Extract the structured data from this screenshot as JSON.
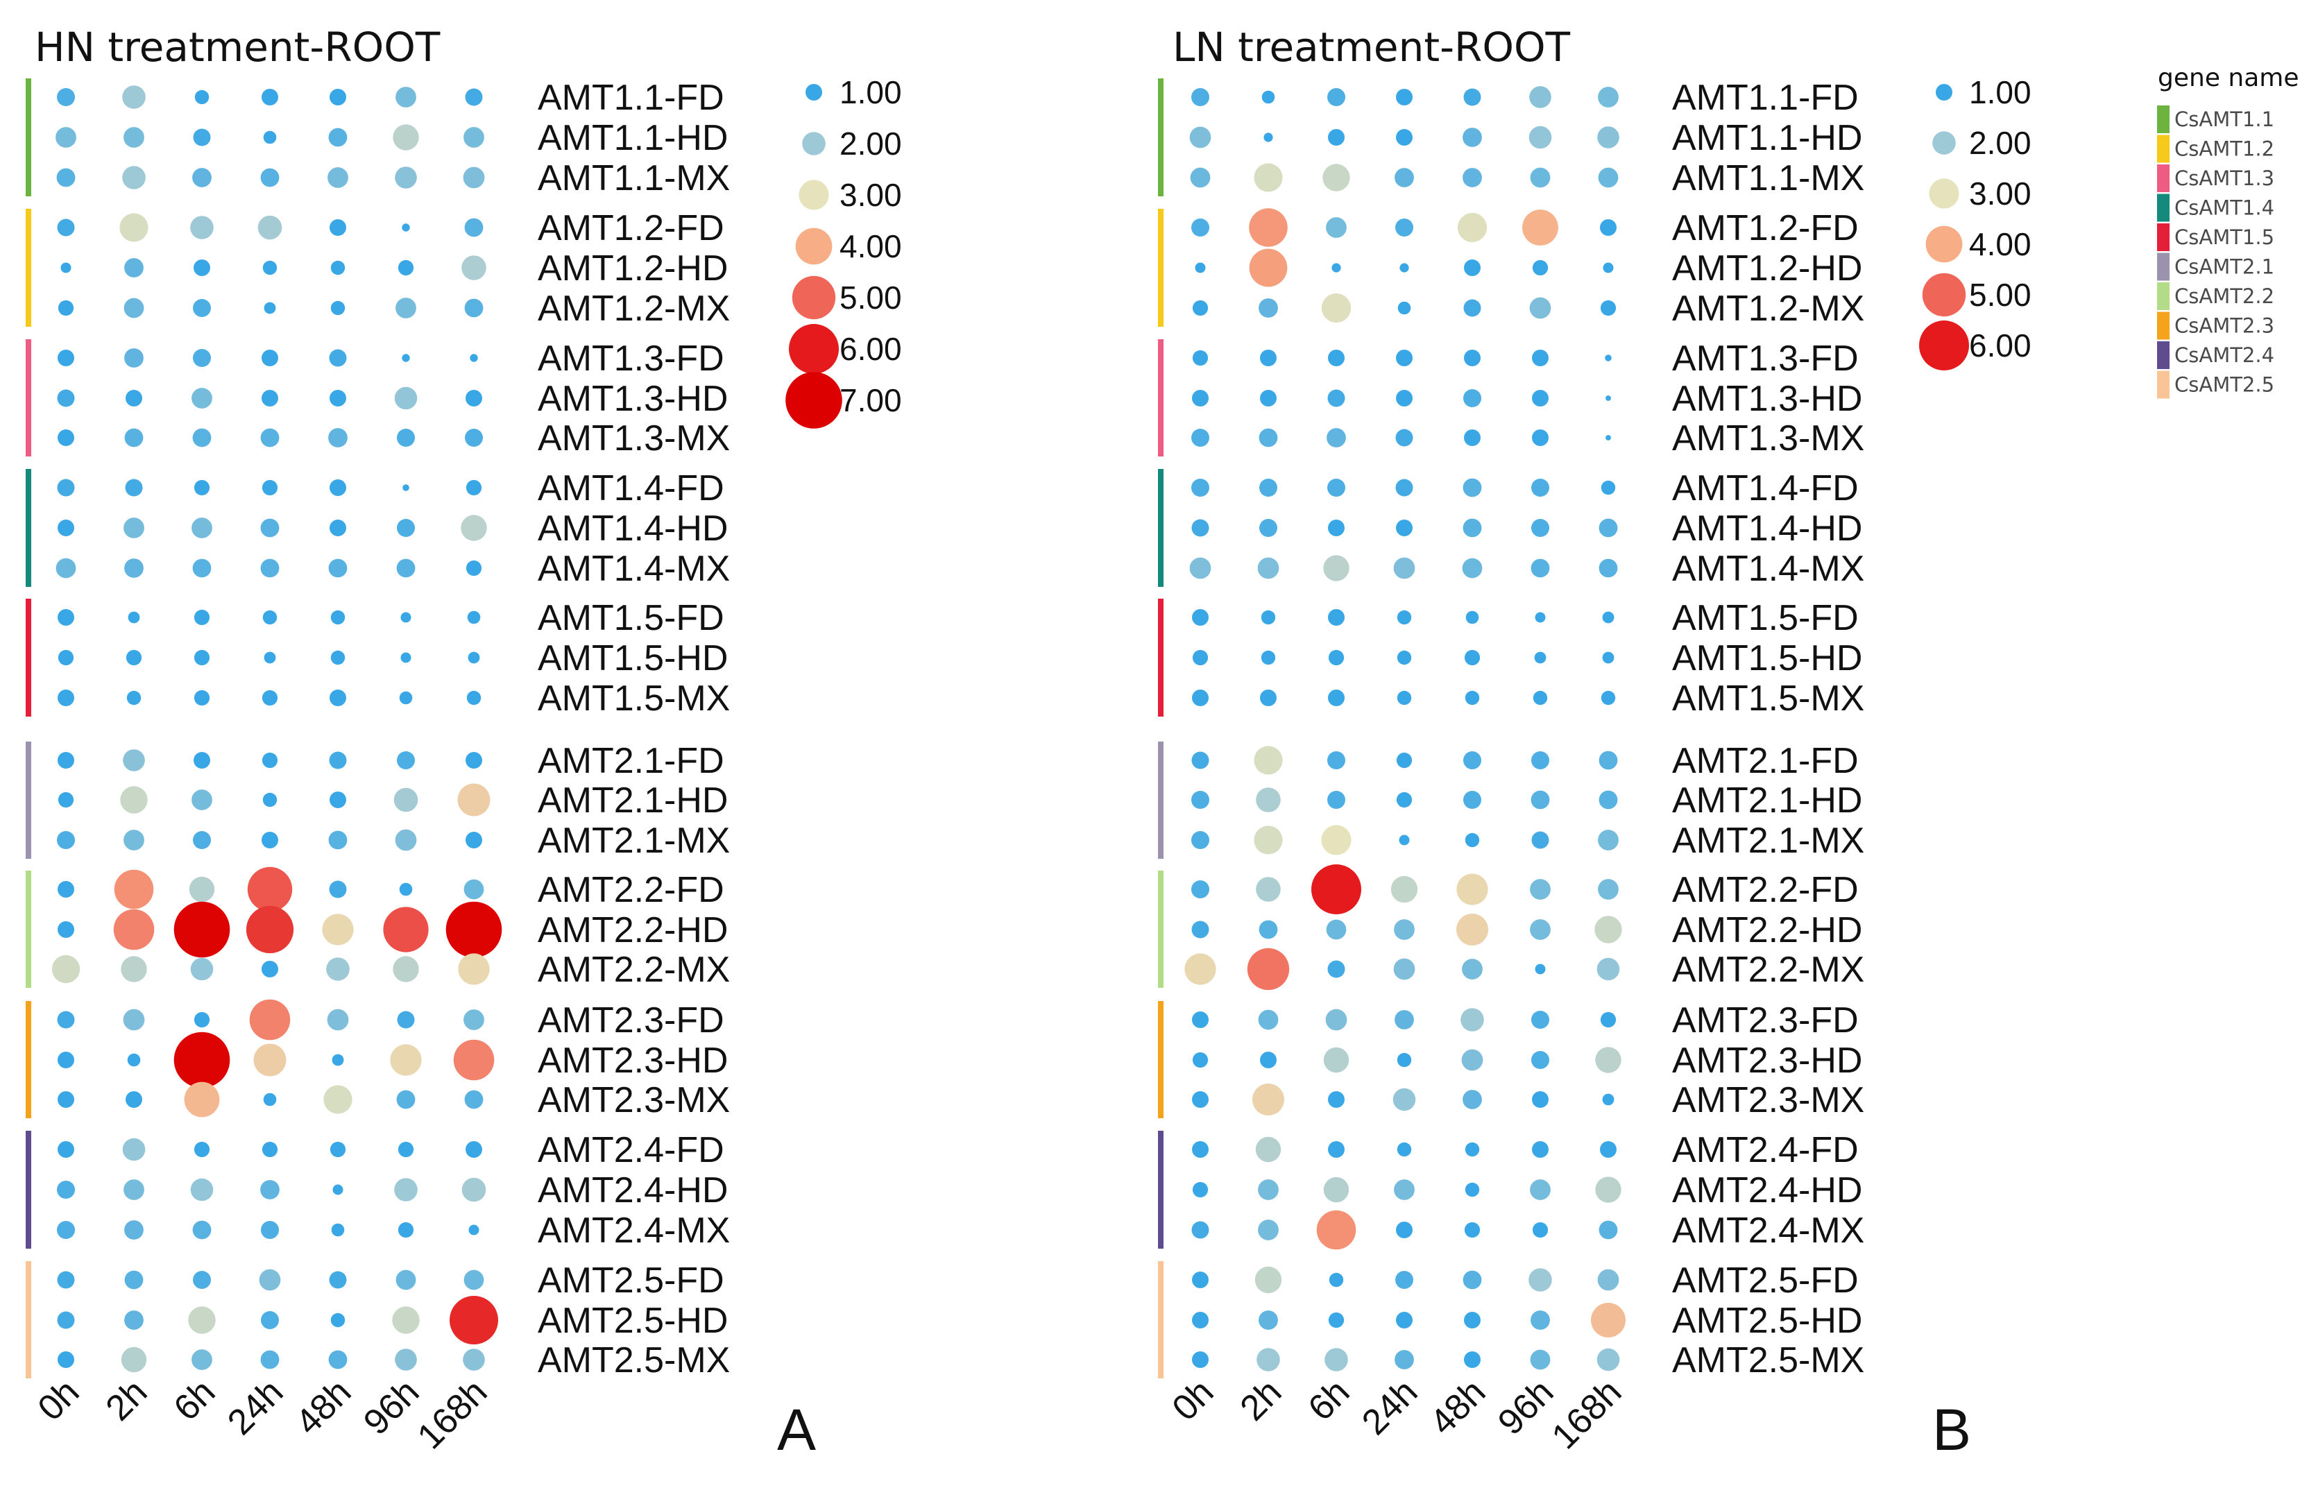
{
  "chart_data": [
    {
      "type": "scatter",
      "subtype": "dot-heatmap",
      "title": "HN treatment-ROOT",
      "panel_label": "A",
      "x": [
        "0h",
        "2h",
        "6h",
        "24h",
        "48h",
        "96h",
        "168h"
      ],
      "rows": [
        "AMT1.1-FD",
        "AMT1.1-HD",
        "AMT1.1-MX",
        "AMT1.2-FD",
        "AMT1.2-HD",
        "AMT1.2-MX",
        "AMT1.3-FD",
        "AMT1.3-HD",
        "AMT1.3-MX",
        "AMT1.4-FD",
        "AMT1.4-HD",
        "AMT1.4-MX",
        "AMT1.5-FD",
        "AMT1.5-HD",
        "AMT1.5-MX",
        "AMT2.1-FD",
        "AMT2.1-HD",
        "AMT2.1-MX",
        "AMT2.2-FD",
        "AMT2.2-HD",
        "AMT2.2-MX",
        "AMT2.3-FD",
        "AMT2.3-HD",
        "AMT2.3-MX",
        "AMT2.4-FD",
        "AMT2.4-HD",
        "AMT2.4-MX",
        "AMT2.5-FD",
        "AMT2.5-HD",
        "AMT2.5-MX"
      ],
      "values": [
        [
          1.2,
          2.0,
          0.8,
          1.0,
          1.0,
          1.6,
          1.1
        ],
        [
          1.6,
          1.6,
          1.1,
          0.7,
          1.3,
          2.4,
          1.6
        ],
        [
          1.3,
          2.0,
          1.4,
          1.3,
          1.6,
          1.8,
          1.7
        ],
        [
          1.1,
          2.8,
          2.0,
          2.1,
          1.0,
          0.3,
          1.3
        ],
        [
          0.5,
          1.4,
          1.0,
          0.8,
          0.8,
          0.9,
          2.2
        ],
        [
          0.9,
          1.5,
          1.2,
          0.6,
          0.8,
          1.6,
          1.3
        ],
        [
          1.0,
          1.4,
          1.2,
          1.0,
          1.1,
          0.3,
          0.3
        ],
        [
          1.1,
          1.0,
          1.6,
          1.0,
          1.0,
          1.9,
          1.0
        ],
        [
          1.0,
          1.3,
          1.3,
          1.3,
          1.4,
          1.2,
          1.2
        ],
        [
          1.1,
          1.1,
          0.9,
          0.9,
          1.0,
          0.2,
          0.9
        ],
        [
          1.0,
          1.6,
          1.6,
          1.3,
          1.0,
          1.2,
          2.4
        ],
        [
          1.5,
          1.4,
          1.3,
          1.3,
          1.3,
          1.3,
          0.9
        ],
        [
          1.0,
          0.6,
          0.9,
          0.8,
          0.8,
          0.5,
          0.7
        ],
        [
          0.9,
          0.9,
          0.9,
          0.6,
          0.8,
          0.5,
          0.6
        ],
        [
          1.0,
          0.8,
          0.9,
          0.9,
          1.0,
          0.7,
          0.8
        ],
        [
          1.0,
          1.8,
          1.0,
          0.9,
          1.1,
          1.2,
          1.0
        ],
        [
          0.9,
          2.6,
          1.6,
          0.8,
          1.0,
          2.1,
          3.4
        ],
        [
          1.2,
          1.6,
          1.2,
          1.0,
          1.3,
          1.7,
          1.0
        ],
        [
          1.0,
          4.4,
          2.3,
          5.2,
          1.1,
          0.7,
          1.5
        ],
        [
          1.0,
          4.6,
          6.9,
          5.6,
          3.2,
          5.3,
          6.9
        ],
        [
          2.7,
          2.4,
          1.9,
          1.0,
          2.0,
          2.4,
          3.2
        ],
        [
          1.1,
          1.7,
          0.9,
          4.6,
          1.7,
          1.1,
          1.6
        ],
        [
          1.0,
          0.7,
          6.9,
          3.4,
          0.6,
          3.2,
          4.6
        ],
        [
          1.0,
          1.0,
          3.8,
          0.7,
          2.8,
          1.3,
          1.3
        ],
        [
          1.0,
          1.9,
          0.9,
          0.9,
          0.9,
          0.9,
          1.0
        ],
        [
          1.2,
          1.6,
          1.9,
          1.4,
          0.5,
          2.0,
          2.1
        ],
        [
          1.2,
          1.4,
          1.3,
          1.2,
          0.7,
          0.9,
          0.5
        ],
        [
          1.1,
          1.3,
          1.2,
          1.7,
          1.1,
          1.5,
          1.5
        ],
        [
          1.1,
          1.4,
          2.6,
          1.2,
          0.8,
          2.6,
          5.8
        ],
        [
          1.0,
          2.3,
          1.6,
          1.3,
          1.3,
          1.8,
          1.8
        ]
      ],
      "legend": [
        {
          "label": "1.00",
          "value": 1
        },
        {
          "label": "2.00",
          "value": 2
        },
        {
          "label": "3.00",
          "value": 3
        },
        {
          "label": "4.00",
          "value": 4
        },
        {
          "label": "5.00",
          "value": 5
        },
        {
          "label": "6.00",
          "value": 6
        },
        {
          "label": "7.00",
          "value": 7
        }
      ],
      "value_range": [
        0,
        7
      ]
    },
    {
      "type": "scatter",
      "subtype": "dot-heatmap",
      "title": "LN treatment-ROOT",
      "panel_label": "B",
      "x": [
        "0h",
        "2h",
        "6h",
        "24h",
        "48h",
        "96h",
        "168h"
      ],
      "rows": [
        "AMT1.1-FD",
        "AMT1.1-HD",
        "AMT1.1-MX",
        "AMT1.2-FD",
        "AMT1.2-HD",
        "AMT1.2-MX",
        "AMT1.3-FD",
        "AMT1.3-HD",
        "AMT1.3-MX",
        "AMT1.4-FD",
        "AMT1.4-HD",
        "AMT1.4-MX",
        "AMT1.5-FD",
        "AMT1.5-HD",
        "AMT1.5-MX",
        "AMT2.1-FD",
        "AMT2.1-HD",
        "AMT2.1-MX",
        "AMT2.2-FD",
        "AMT2.2-HD",
        "AMT2.2-MX",
        "AMT2.3-FD",
        "AMT2.3-HD",
        "AMT2.3-MX",
        "AMT2.4-FD",
        "AMT2.4-HD",
        "AMT2.4-MX",
        "AMT2.5-FD",
        "AMT2.5-HD",
        "AMT2.5-MX"
      ],
      "values": [
        [
          1.2,
          0.7,
          1.2,
          1.0,
          1.1,
          1.8,
          1.6
        ],
        [
          1.7,
          0.4,
          1.0,
          1.0,
          1.4,
          1.9,
          1.8
        ],
        [
          1.5,
          2.8,
          2.6,
          1.4,
          1.4,
          1.5,
          1.5
        ],
        [
          1.2,
          4.3,
          1.6,
          1.2,
          2.9,
          3.9,
          1.0
        ],
        [
          0.5,
          4.2,
          0.4,
          0.4,
          1.0,
          0.9,
          0.5
        ],
        [
          0.9,
          1.4,
          2.9,
          0.7,
          1.1,
          1.7,
          0.9
        ],
        [
          0.9,
          1.0,
          1.0,
          1.0,
          1.0,
          1.0,
          0.2
        ],
        [
          1.0,
          1.0,
          1.1,
          1.0,
          1.2,
          1.0,
          0.1
        ],
        [
          1.2,
          1.3,
          1.4,
          1.1,
          1.0,
          1.0,
          0.1
        ],
        [
          1.2,
          1.2,
          1.2,
          1.1,
          1.3,
          1.2,
          0.8
        ],
        [
          1.1,
          1.2,
          1.0,
          1.0,
          1.3,
          1.2,
          1.3
        ],
        [
          1.7,
          1.7,
          2.4,
          1.7,
          1.5,
          1.3,
          1.3
        ],
        [
          1.0,
          0.8,
          1.0,
          0.8,
          0.7,
          0.5,
          0.6
        ],
        [
          0.9,
          0.8,
          0.9,
          0.8,
          0.9,
          0.6,
          0.6
        ],
        [
          1.0,
          1.0,
          1.0,
          0.8,
          0.8,
          0.8,
          0.8
        ],
        [
          1.1,
          2.8,
          1.2,
          0.9,
          1.2,
          1.2,
          1.3
        ],
        [
          1.2,
          2.2,
          1.2,
          0.9,
          1.2,
          1.3,
          1.3
        ],
        [
          1.2,
          2.8,
          3.0,
          0.5,
          0.8,
          1.1,
          1.6
        ],
        [
          1.2,
          2.2,
          6.0,
          2.5,
          3.2,
          1.6,
          1.6
        ],
        [
          1.1,
          1.3,
          1.5,
          1.6,
          3.3,
          1.6,
          2.6
        ],
        [
          3.2,
          4.8,
          1.1,
          1.7,
          1.6,
          0.5,
          1.9
        ],
        [
          1.0,
          1.5,
          1.7,
          1.4,
          2.0,
          1.2,
          0.9
        ],
        [
          0.9,
          1.0,
          2.3,
          0.8,
          1.7,
          1.2,
          2.4
        ],
        [
          1.0,
          3.3,
          1.0,
          1.9,
          1.4,
          1.0,
          0.6
        ],
        [
          1.0,
          2.3,
          1.0,
          0.8,
          0.8,
          1.0,
          1.0
        ],
        [
          0.9,
          1.6,
          2.3,
          1.6,
          0.8,
          1.6,
          2.4
        ],
        [
          1.1,
          1.6,
          4.4,
          1.0,
          0.9,
          0.9,
          1.3
        ],
        [
          1.0,
          2.5,
          0.8,
          1.2,
          1.3,
          2.0,
          1.7
        ],
        [
          1.0,
          1.4,
          0.9,
          1.0,
          1.0,
          1.4,
          3.7
        ],
        [
          1.0,
          2.0,
          2.0,
          1.4,
          1.0,
          1.5,
          1.9
        ]
      ],
      "legend": [
        {
          "label": "1.00",
          "value": 1
        },
        {
          "label": "2.00",
          "value": 2
        },
        {
          "label": "3.00",
          "value": 3
        },
        {
          "label": "4.00",
          "value": 4
        },
        {
          "label": "5.00",
          "value": 5
        },
        {
          "label": "6.00",
          "value": 6
        }
      ],
      "value_range": [
        0,
        6
      ]
    }
  ],
  "group_legend": {
    "title": "gene name",
    "items": [
      {
        "label": "CsAMT1.1",
        "color": "#6db33f"
      },
      {
        "label": "CsAMT1.2",
        "color": "#f7c91b"
      },
      {
        "label": "CsAMT1.3",
        "color": "#ee5c84"
      },
      {
        "label": "CsAMT1.4",
        "color": "#138a7c"
      },
      {
        "label": "CsAMT1.5",
        "color": "#e51e3a"
      },
      {
        "label": "CsAMT2.1",
        "color": "#9b93ae"
      },
      {
        "label": "CsAMT2.2",
        "color": "#b2dc87"
      },
      {
        "label": "CsAMT2.3",
        "color": "#f5a21d"
      },
      {
        "label": "CsAMT2.4",
        "color": "#5e4c8f"
      },
      {
        "label": "CsAMT2.5",
        "color": "#f9c496"
      }
    ]
  },
  "color_scale": [
    "#39a7e6",
    "#9dc8d6",
    "#e6e2bb",
    "#f7ad86",
    "#ef6659",
    "#e41a1c",
    "#dd0000"
  ]
}
